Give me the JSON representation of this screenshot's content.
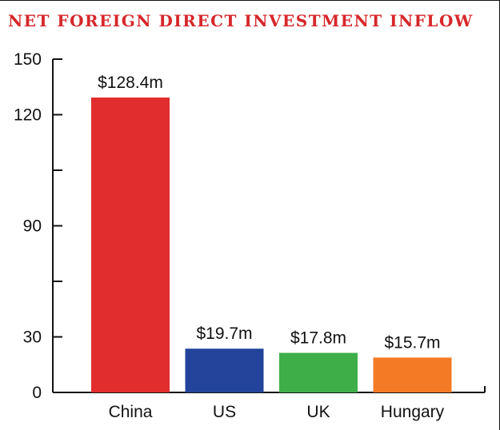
{
  "chart_data": {
    "type": "bar",
    "title": "NET FOREIGN DIRECT INVESTMENT INFLOW",
    "categories": [
      "China",
      "US",
      "UK",
      "Hungary"
    ],
    "values": [
      128.4,
      19.7,
      17.8,
      15.7
    ],
    "data_labels": [
      "$128.4m",
      "$19.7m",
      "$17.8m",
      "$15.7m"
    ],
    "colors": [
      "#e12d2d",
      "#23449a",
      "#3eae49",
      "#f47a25"
    ],
    "yticks": [
      {
        "label": "150"
      },
      {
        "label": "120"
      },
      {
        "label": ""
      },
      {
        "label": "90"
      },
      {
        "label": ""
      },
      {
        "label": "30"
      },
      {
        "label": "0"
      }
    ],
    "ylim": [
      0,
      150
    ],
    "grid": false,
    "legend": "none"
  }
}
